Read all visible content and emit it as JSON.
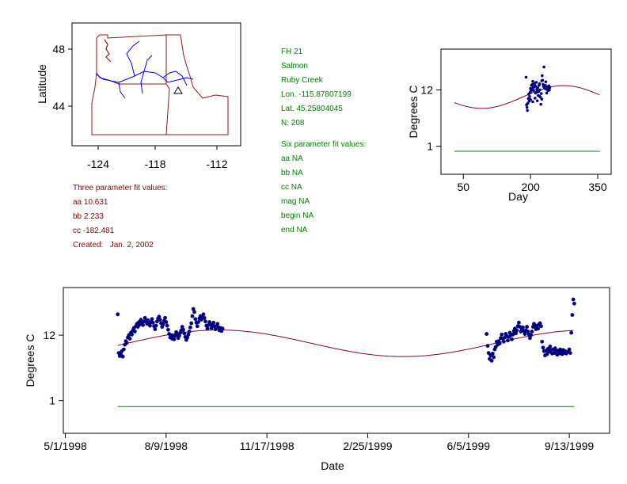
{
  "colors": {
    "border": "#800000",
    "state_outline": "#8b1a1a",
    "river": "#0000ff",
    "fit_curve": "#800040",
    "baseline": "#008000",
    "points": "#000080",
    "maroon_text": "#8b0000",
    "green_text": "#008000"
  },
  "map": {
    "ylabel": "Latitude",
    "x_ticks": [
      "-124",
      "-118",
      "-112"
    ],
    "y_ticks": [
      "48",
      "44"
    ],
    "marker_icon": "triangle-icon"
  },
  "site_info": {
    "lines": [
      "FH 21",
      "Salmon",
      "Ruby Creek",
      "Lon. -115.87807199",
      "Lat. 45.25804045",
      "N: 208"
    ]
  },
  "six_param": {
    "title": "Six parameter fit values:",
    "lines": [
      "aa NA",
      "bb NA",
      "cc NA",
      "mag NA",
      "begin NA",
      "end NA"
    ]
  },
  "three_param": {
    "title": "Three parameter fit values:",
    "lines": [
      "aa 10.631",
      "bb 2.233",
      "cc -182.481",
      "Created:   Jan. 2, 2002"
    ]
  },
  "chart_data": [
    {
      "type": "scatter",
      "title": "",
      "xlabel": "Day",
      "ylabel": "Degrees C",
      "x_ticks": [
        50,
        200,
        350
      ],
      "x_tick_labels": [
        "50",
        "200",
        "350"
      ],
      "y_ticks": [
        1,
        12
      ],
      "y_tick_labels": [
        "1",
        "12"
      ],
      "xlim": [
        0,
        380
      ],
      "ylim": [
        -4.5,
        20
      ],
      "fit": {
        "aa": 10.631,
        "bb": 2.233,
        "cc": -182.481,
        "x_range": [
          30,
          355
        ]
      },
      "baseline": {
        "y": 0,
        "x_range": [
          30,
          355
        ]
      },
      "series": [
        {
          "points": [
            [
              190,
              14.5
            ],
            [
              191,
              9.1
            ],
            [
              192,
              8.6
            ],
            [
              193,
              8.0
            ],
            [
              194,
              9.4
            ],
            [
              195,
              10.3
            ],
            [
              196,
              11.2
            ],
            [
              197,
              9.8
            ],
            [
              198,
              10.7
            ],
            [
              199,
              11.5
            ],
            [
              200,
              12.3
            ],
            [
              201,
              11.8
            ],
            [
              202,
              12.9
            ],
            [
              203,
              12.2
            ],
            [
              204,
              13.1
            ],
            [
              205,
              13.7
            ],
            [
              206,
              12.5
            ],
            [
              207,
              11.9
            ],
            [
              208,
              12.6
            ],
            [
              209,
              13.3
            ],
            [
              210,
              12.8
            ],
            [
              211,
              11.4
            ],
            [
              212,
              12.7
            ],
            [
              213,
              13.5
            ],
            [
              214,
              12.1
            ],
            [
              215,
              11.6
            ],
            [
              216,
              12.4
            ],
            [
              217,
              10.9
            ],
            [
              218,
              11.7
            ],
            [
              219,
              12.9
            ],
            [
              220,
              13.2
            ],
            [
              221,
              12.0
            ],
            [
              222,
              10.6
            ],
            [
              223,
              9.2
            ],
            [
              224,
              11.3
            ],
            [
              225,
              13.8
            ],
            [
              226,
              14.8
            ],
            [
              227,
              13.9
            ],
            [
              228,
              13.1
            ],
            [
              229,
              12.7
            ],
            [
              230,
              16.5
            ],
            [
              231,
              12.5
            ],
            [
              232,
              12.3
            ],
            [
              233,
              12.9
            ],
            [
              234,
              13.6
            ],
            [
              235,
              12.2
            ],
            [
              236,
              11.4
            ],
            [
              237,
              12.1
            ],
            [
              238,
              12.6
            ],
            [
              239,
              11.9
            ],
            [
              240,
              12.4
            ],
            [
              241,
              12.8
            ],
            [
              242,
              12.0
            ],
            [
              243,
              12.5
            ],
            [
              200,
              10.1
            ],
            [
              205,
              9.7
            ],
            [
              210,
              10.4
            ],
            [
              215,
              9.9
            ],
            [
              220,
              10.8
            ],
            [
              225,
              10.2
            ]
          ]
        }
      ]
    },
    {
      "type": "scatter",
      "title": "",
      "xlabel": "Date",
      "ylabel": "Degrees C",
      "x_ticks": [
        0,
        100,
        200,
        300,
        400,
        500
      ],
      "x_tick_labels": [
        "5/1/1998",
        "8/9/1998",
        "11/17/1998",
        "2/25/1999",
        "6/5/1999",
        "9/13/1999"
      ],
      "y_ticks": [
        1,
        12
      ],
      "y_tick_labels": [
        "1",
        "12"
      ],
      "xlim": [
        -2,
        540
      ],
      "ylim": [
        -4.5,
        20
      ],
      "fit": {
        "aa": 10.631,
        "bb": 2.233,
        "cc": -182.481,
        "x_range": [
          52,
          505
        ]
      },
      "baseline": {
        "y": 0,
        "x_range": [
          52,
          505
        ]
      },
      "series": [
        {
          "points": [
            [
              52,
              15.5
            ],
            [
              53,
              9.0
            ],
            [
              54,
              8.5
            ],
            [
              55,
              8.8
            ],
            [
              56,
              9.3
            ],
            [
              57,
              8.4
            ],
            [
              58,
              9.6
            ],
            [
              59,
              10.4
            ],
            [
              60,
              11.0
            ],
            [
              61,
              10.7
            ],
            [
              62,
              11.6
            ],
            [
              63,
              12.0
            ],
            [
              64,
              11.4
            ],
            [
              65,
              12.4
            ],
            [
              66,
              12.1
            ],
            [
              67,
              12.8
            ],
            [
              68,
              13.2
            ],
            [
              69,
              12.6
            ],
            [
              70,
              13.5
            ],
            [
              71,
              13.9
            ],
            [
              72,
              13.4
            ],
            [
              73,
              14.2
            ],
            [
              74,
              13.8
            ],
            [
              75,
              14.6
            ],
            [
              76,
              14.1
            ],
            [
              77,
              13.7
            ],
            [
              78,
              14.3
            ],
            [
              79,
              14.9
            ],
            [
              80,
              14.4
            ],
            [
              81,
              13.9
            ],
            [
              82,
              14.5
            ],
            [
              83,
              14.0
            ],
            [
              84,
              13.6
            ],
            [
              85,
              14.2
            ],
            [
              86,
              14.7
            ],
            [
              87,
              14.1
            ],
            [
              88,
              13.5
            ],
            [
              89,
              13.0
            ],
            [
              90,
              13.6
            ],
            [
              91,
              14.3
            ],
            [
              92,
              14.8
            ],
            [
              93,
              15.1
            ],
            [
              94,
              14.6
            ],
            [
              95,
              14.0
            ],
            [
              96,
              13.4
            ],
            [
              97,
              13.8
            ],
            [
              98,
              14.4
            ],
            [
              99,
              14.9
            ],
            [
              100,
              14.2
            ],
            [
              101,
              13.6
            ],
            [
              102,
              12.9
            ],
            [
              103,
              12.2
            ],
            [
              104,
              11.6
            ],
            [
              105,
              12.0
            ],
            [
              106,
              11.4
            ],
            [
              107,
              11.8
            ],
            [
              108,
              11.3
            ],
            [
              109,
              11.9
            ],
            [
              110,
              12.5
            ],
            [
              111,
              12.0
            ],
            [
              112,
              11.5
            ],
            [
              113,
              11.9
            ],
            [
              114,
              12.4
            ],
            [
              115,
              12.8
            ],
            [
              116,
              13.4
            ],
            [
              117,
              12.9
            ],
            [
              118,
              12.3
            ],
            [
              119,
              11.7
            ],
            [
              120,
              11.2
            ],
            [
              121,
              11.6
            ],
            [
              122,
              12.1
            ],
            [
              123,
              12.6
            ],
            [
              124,
              13.3
            ],
            [
              125,
              14.0
            ],
            [
              126,
              15.2
            ],
            [
              127,
              16.4
            ],
            [
              128,
              15.9
            ],
            [
              129,
              14.7
            ],
            [
              130,
              14.1
            ],
            [
              131,
              13.5
            ],
            [
              132,
              14.2
            ],
            [
              133,
              14.8
            ],
            [
              134,
              15.2
            ],
            [
              135,
              14.6
            ],
            [
              136,
              14.9
            ],
            [
              137,
              15.5
            ],
            [
              138,
              14.9
            ],
            [
              139,
              14.3
            ],
            [
              140,
              13.6
            ],
            [
              141,
              13.1
            ],
            [
              142,
              13.7
            ],
            [
              143,
              14.2
            ],
            [
              144,
              13.8
            ],
            [
              145,
              13.2
            ],
            [
              146,
              13.6
            ],
            [
              147,
              14.1
            ],
            [
              148,
              13.5
            ],
            [
              149,
              13.0
            ],
            [
              150,
              13.4
            ],
            [
              151,
              13.9
            ],
            [
              152,
              13.3
            ],
            [
              153,
              12.8
            ],
            [
              154,
              13.2
            ],
            [
              155,
              12.7
            ],
            [
              156,
              13.1
            ],
            [
              418,
              12.2
            ],
            [
              419,
              10.2
            ],
            [
              420,
              9.0
            ],
            [
              421,
              8.0
            ],
            [
              422,
              8.6
            ],
            [
              423,
              7.7
            ],
            [
              424,
              8.9
            ],
            [
              425,
              8.3
            ],
            [
              426,
              9.6
            ],
            [
              427,
              10.0
            ],
            [
              428,
              10.9
            ],
            [
              429,
              10.4
            ],
            [
              430,
              11.0
            ],
            [
              431,
              10.6
            ],
            [
              432,
              11.5
            ],
            [
              433,
              12.1
            ],
            [
              434,
              11.4
            ],
            [
              435,
              10.9
            ],
            [
              436,
              11.6
            ],
            [
              437,
              12.2
            ],
            [
              438,
              11.8
            ],
            [
              439,
              11.1
            ],
            [
              440,
              11.7
            ],
            [
              441,
              12.4
            ],
            [
              442,
              12.0
            ],
            [
              443,
              11.3
            ],
            [
              444,
              12.1
            ],
            [
              445,
              12.7
            ],
            [
              446,
              13.1
            ],
            [
              447,
              12.3
            ],
            [
              448,
              12.8
            ],
            [
              449,
              13.5
            ],
            [
              450,
              14.1
            ],
            [
              451,
              13.4
            ],
            [
              452,
              12.6
            ],
            [
              453,
              12.9
            ],
            [
              454,
              13.3
            ],
            [
              455,
              12.7
            ],
            [
              456,
              12.2
            ],
            [
              457,
              12.8
            ],
            [
              458,
              13.4
            ],
            [
              459,
              12.6
            ],
            [
              460,
              12.1
            ],
            [
              461,
              11.5
            ],
            [
              462,
              12.0
            ],
            [
              463,
              12.6
            ],
            [
              464,
              13.4
            ],
            [
              465,
              13.9
            ],
            [
              466,
              13.4
            ],
            [
              467,
              13.0
            ],
            [
              468,
              13.6
            ],
            [
              469,
              13.1
            ],
            [
              470,
              13.8
            ],
            [
              471,
              14.0
            ],
            [
              472,
              13.5
            ],
            [
              473,
              10.9
            ],
            [
              474,
              9.9
            ],
            [
              475,
              9.3
            ],
            [
              476,
              8.6
            ],
            [
              477,
              9.4
            ],
            [
              478,
              8.8
            ],
            [
              479,
              9.7
            ],
            [
              480,
              9.2
            ],
            [
              481,
              10.1
            ],
            [
              482,
              9.5
            ],
            [
              483,
              8.9
            ],
            [
              484,
              9.6
            ],
            [
              485,
              9.0
            ],
            [
              486,
              9.8
            ],
            [
              487,
              9.3
            ],
            [
              488,
              8.7
            ],
            [
              489,
              9.4
            ],
            [
              490,
              8.9
            ],
            [
              491,
              9.6
            ],
            [
              492,
              9.1
            ],
            [
              493,
              8.8
            ],
            [
              494,
              9.5
            ],
            [
              495,
              9.0
            ],
            [
              496,
              9.3
            ],
            [
              497,
              8.9
            ],
            [
              499,
              9.2
            ],
            [
              500,
              9.6
            ],
            [
              501,
              9.0
            ],
            [
              502,
              12.4
            ],
            [
              503,
              15.4
            ],
            [
              504,
              18.0
            ],
            [
              505,
              17.3
            ]
          ]
        }
      ]
    }
  ]
}
